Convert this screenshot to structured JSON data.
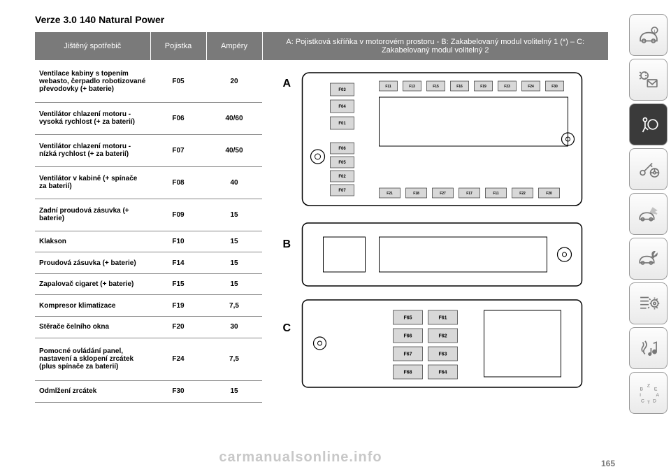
{
  "title": "Verze 3.0 140 Natural Power",
  "columns": {
    "c1": "Jištěný spotřebič",
    "c2": "Pojistka",
    "c3": "Ampéry",
    "c4": "A: Pojistková skříňka v motorovém prostoru - B: Zakabelovaný modul volitelný 1 (*) – C: Zakabelovaný modul volitelný 2"
  },
  "rows": [
    {
      "c1": "Ventilace kabiny s topením webasto, čerpadlo robotizované převodovky (+ baterie)",
      "c2": "F05",
      "c3": "20"
    },
    {
      "c1": "Ventilátor chlazení motoru - vysoká rychlost (+ za baterií)",
      "c2": "F06",
      "c3": "40/60"
    },
    {
      "c1": "Ventilátor chlazení motoru - nízká rychlost (+ za baterií)",
      "c2": "F07",
      "c3": "40/50"
    },
    {
      "c1": "Ventilátor v kabině (+ spínače za baterií)",
      "c2": "F08",
      "c3": "40"
    },
    {
      "c1": "Zadní proudová zásuvka (+ baterie)",
      "c2": "F09",
      "c3": "15"
    },
    {
      "c1": "Klakson",
      "c2": "F10",
      "c3": "15"
    },
    {
      "c1": "Proudová zásuvka (+ baterie)",
      "c2": "F14",
      "c3": "15"
    },
    {
      "c1": "Zapalovač cigaret (+ baterie)",
      "c2": "F15",
      "c3": "15"
    },
    {
      "c1": "Kompresor klimatizace",
      "c2": "F19",
      "c3": "7,5"
    },
    {
      "c1": "Stěrače čelního okna",
      "c2": "F20",
      "c3": "30"
    },
    {
      "c1": "Pomocné ovládání panel, nastavení a sklopení zrcátek (plus spínače za baterií)",
      "c2": "F24",
      "c3": "7,5"
    },
    {
      "c1": "Odmlžení zrcátek",
      "c2": "F30",
      "c3": "15"
    }
  ],
  "diagram": {
    "groupA": {
      "label": "A",
      "leftCol": [
        "F03",
        "F04",
        "F01"
      ],
      "topRow": [
        "F11",
        "F13",
        "F15",
        "F16",
        "F19",
        "F23",
        "F24",
        "F30"
      ],
      "midCol": [
        "F06",
        "F05",
        "F02",
        "F07"
      ],
      "bottomRow": [
        "F21",
        "F18",
        "F27",
        "F17",
        "F11",
        "F22",
        "F20"
      ]
    },
    "groupB": {
      "label": "B"
    },
    "groupC": {
      "label": "C",
      "pairs": [
        [
          "F65",
          "F61"
        ],
        [
          "F66",
          "F62"
        ],
        [
          "F67",
          "F63"
        ],
        [
          "F68",
          "F64"
        ]
      ]
    },
    "colors": {
      "outline": "#000000",
      "fuse_border": "#333333",
      "fuse_fill": "#d8d8d8",
      "text": "#000000",
      "label_fontsize": 5
    }
  },
  "sidebar": [
    "car-info-icon",
    "light-mail-icon",
    "airbag-icon",
    "key-steering-icon",
    "car-crash-icon",
    "car-service-icon",
    "settings-list-icon",
    "nav-music-icon",
    "alphabet-icon"
  ],
  "watermark": "carmanualsonline.info",
  "pagenum": "165"
}
